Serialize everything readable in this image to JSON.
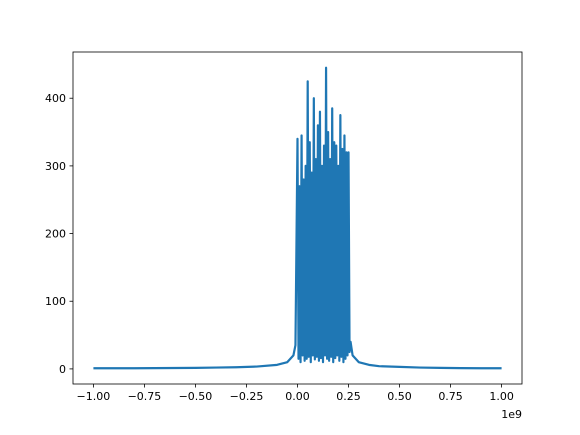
{
  "chart_data": {
    "type": "line",
    "x_offset_label": "1e9",
    "x": [
      -1.0,
      -0.9,
      -0.8,
      -0.7,
      -0.6,
      -0.5,
      -0.4,
      -0.3,
      -0.2,
      -0.1,
      -0.05,
      -0.02,
      -0.01,
      0.0,
      0.005,
      0.01,
      0.015,
      0.02,
      0.025,
      0.03,
      0.035,
      0.04,
      0.045,
      0.05,
      0.055,
      0.06,
      0.065,
      0.07,
      0.075,
      0.08,
      0.085,
      0.09,
      0.095,
      0.1,
      0.105,
      0.11,
      0.115,
      0.12,
      0.125,
      0.13,
      0.135,
      0.14,
      0.145,
      0.15,
      0.155,
      0.16,
      0.165,
      0.17,
      0.175,
      0.18,
      0.185,
      0.19,
      0.195,
      0.2,
      0.205,
      0.21,
      0.215,
      0.22,
      0.225,
      0.23,
      0.235,
      0.24,
      0.245,
      0.25,
      0.255,
      0.26,
      0.27,
      0.3,
      0.35,
      0.4,
      0.5,
      0.6,
      0.7,
      0.8,
      0.9,
      1.0
    ],
    "series": [
      {
        "color": "#1f77b4",
        "values": [
          1,
          1,
          1,
          1.2,
          1.3,
          1.5,
          2,
          2.5,
          3.5,
          6,
          10,
          20,
          35,
          340,
          15,
          270,
          10,
          345,
          20,
          280,
          12,
          300,
          15,
          425,
          18,
          335,
          10,
          290,
          20,
          400,
          14,
          310,
          18,
          360,
          12,
          380,
          16,
          300,
          10,
          330,
          20,
          445,
          15,
          350,
          12,
          310,
          18,
          385,
          10,
          335,
          16,
          330,
          20,
          300,
          12,
          375,
          18,
          325,
          10,
          345,
          15,
          320,
          20,
          320,
          25,
          40,
          20,
          10,
          6,
          4,
          3,
          2,
          1.5,
          1.2,
          1,
          1
        ]
      }
    ],
    "xlim": [
      -1.1,
      1.1
    ],
    "ylim": [
      -22.3,
      468.3
    ],
    "xticks": [
      {
        "value": -1.0,
        "label": "−1.00"
      },
      {
        "value": -0.75,
        "label": "−0.75"
      },
      {
        "value": -0.5,
        "label": "−0.50"
      },
      {
        "value": -0.25,
        "label": "−0.25"
      },
      {
        "value": 0.0,
        "label": "0.00"
      },
      {
        "value": 0.25,
        "label": "0.25"
      },
      {
        "value": 0.5,
        "label": "0.50"
      },
      {
        "value": 0.75,
        "label": "0.75"
      },
      {
        "value": 1.0,
        "label": "1.00"
      }
    ],
    "yticks": [
      0,
      100,
      200,
      300,
      400
    ]
  }
}
